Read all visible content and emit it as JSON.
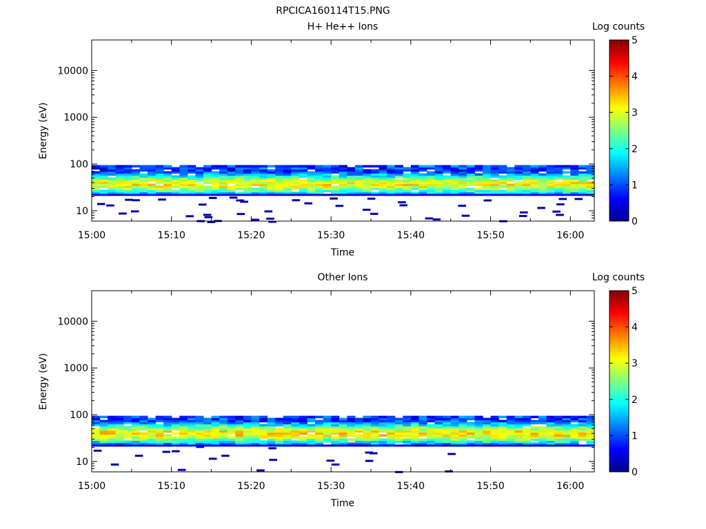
{
  "figure": {
    "title": "RPCICA160114T15.PNG"
  },
  "colorbar": {
    "label": "Log counts",
    "ticks": [
      "0",
      "1",
      "2",
      "3",
      "4",
      "5"
    ],
    "range": [
      0,
      5
    ],
    "colormap": "jet"
  },
  "chart_data": [
    {
      "type": "heatmap",
      "title": "H+ He++ Ions",
      "xlabel": "Time",
      "ylabel": "Energy (eV)",
      "y_scale": "log",
      "xlim": [
        "15:00",
        "16:03"
      ],
      "ylim": [
        6,
        45000
      ],
      "x_ticks": [
        "15:00",
        "15:10",
        "15:20",
        "15:30",
        "15:40",
        "15:50",
        "16:00"
      ],
      "y_ticks": [
        "10",
        "100",
        "1000",
        "10000"
      ],
      "band": {
        "energy_min_eV": 23,
        "energy_max_eV": 95,
        "peak_energy_eV": 37,
        "peak_log_counts": 2.8
      },
      "sparse_low_energy_eV": [
        6,
        22
      ]
    },
    {
      "type": "heatmap",
      "title": "Other Ions",
      "xlabel": "Time",
      "ylabel": "Energy (eV)",
      "y_scale": "log",
      "xlim": [
        "15:00",
        "16:03"
      ],
      "ylim": [
        6,
        45000
      ],
      "x_ticks": [
        "15:00",
        "15:10",
        "15:20",
        "15:30",
        "15:40",
        "15:50",
        "16:00"
      ],
      "y_ticks": [
        "10",
        "100",
        "1000",
        "10000"
      ],
      "band": {
        "energy_min_eV": 23,
        "energy_max_eV": 95,
        "peak_energy_eV": 40,
        "peak_log_counts": 2.9
      },
      "sparse_low_energy_eV": [
        6,
        22
      ]
    }
  ]
}
